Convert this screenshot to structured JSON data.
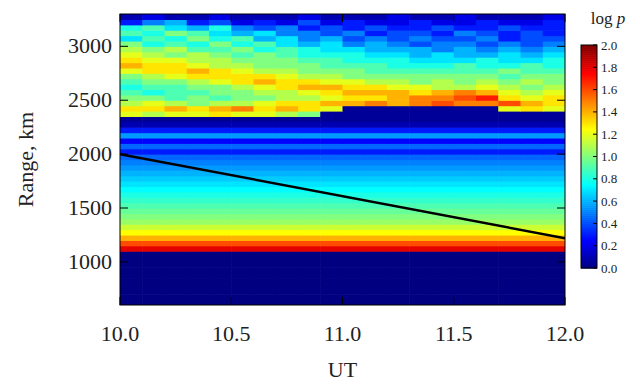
{
  "chart_data": {
    "type": "heatmap",
    "x_label": "UT",
    "y_label": "Range, km",
    "xlim": [
      10,
      12
    ],
    "ylim": [
      600,
      3300
    ],
    "xticks": [
      {
        "value": 10,
        "label": "10.0"
      },
      {
        "value": 10.5,
        "label": "10.5"
      },
      {
        "value": 11,
        "label": "11.0"
      },
      {
        "value": 11.5,
        "label": "11.5"
      },
      {
        "value": 12,
        "label": "12.0"
      }
    ],
    "yticks": [
      1000,
      1500,
      2000,
      2500,
      3000
    ],
    "x_edges": [
      10,
      10.1,
      10.2,
      10.3,
      10.4,
      10.5,
      10.6,
      10.7,
      10.8,
      10.9,
      11,
      11.1,
      11.2,
      11.3,
      11.4,
      11.5,
      11.6,
      11.7,
      11.8,
      11.9,
      12
    ],
    "y_edges": [
      600,
      650,
      700,
      750,
      800,
      850,
      900,
      950,
      1000,
      1050,
      1100,
      1150,
      1200,
      1250,
      1300,
      1350,
      1400,
      1450,
      1500,
      1550,
      1600,
      1650,
      1700,
      1750,
      1800,
      1850,
      1900,
      1950,
      2000,
      2050,
      2100,
      2150,
      2200,
      2250,
      2300,
      2350,
      2400,
      2450,
      2500,
      2550,
      2600,
      2650,
      2700,
      2750,
      2800,
      2850,
      2900,
      2950,
      3000,
      3050,
      3100,
      3150,
      3200,
      3250,
      3300
    ],
    "values": [
      [
        0,
        0,
        0,
        0,
        0,
        0,
        0,
        0,
        0,
        0,
        0,
        0,
        0,
        0,
        0,
        0,
        0,
        0,
        0,
        0
      ],
      [
        0,
        0,
        0,
        0,
        0,
        0,
        0,
        0,
        0,
        0,
        0,
        0,
        0,
        0,
        0,
        0,
        0,
        0,
        0,
        0
      ],
      [
        0,
        0,
        0,
        0,
        0,
        0,
        0,
        0,
        0,
        0,
        0,
        0,
        0,
        0,
        0,
        0,
        0,
        0,
        0,
        0
      ],
      [
        0,
        0,
        0,
        0,
        0,
        0,
        0,
        0,
        0,
        0,
        0,
        0,
        0,
        0,
        0,
        0,
        0,
        0,
        0,
        0
      ],
      [
        0,
        0,
        0,
        0,
        0,
        0,
        0,
        0,
        0,
        0,
        0,
        0,
        0,
        0,
        0,
        0,
        0,
        0,
        0,
        0
      ],
      [
        0,
        0,
        0,
        0,
        0,
        0,
        0,
        0,
        0,
        0,
        0,
        0,
        0,
        0,
        0,
        0,
        0,
        0,
        0,
        0
      ],
      [
        0,
        0,
        0,
        0,
        0,
        0,
        0,
        0,
        0,
        0,
        0,
        0,
        0,
        0,
        0,
        0,
        0,
        0,
        0,
        0
      ],
      [
        0,
        0,
        0,
        0,
        0,
        0,
        0,
        0,
        0,
        0,
        0,
        0,
        0,
        0,
        0,
        0,
        0,
        0,
        0,
        0
      ],
      [
        0,
        0,
        0,
        0,
        0,
        0,
        0,
        0,
        0,
        0,
        0,
        0,
        0,
        0,
        0,
        0,
        0,
        0,
        0,
        0
      ],
      [
        0,
        0,
        0,
        0,
        0,
        0,
        0,
        0,
        0,
        0,
        0,
        0,
        0,
        0,
        0,
        0,
        0,
        0,
        0,
        0
      ],
      [
        1.8,
        1.8,
        1.8,
        1.8,
        1.8,
        1.8,
        1.8,
        1.8,
        1.8,
        1.8,
        1.8,
        1.8,
        1.8,
        1.8,
        1.8,
        1.8,
        1.8,
        1.8,
        1.8,
        1.8
      ],
      [
        1.6,
        1.6,
        1.6,
        1.6,
        1.6,
        1.6,
        1.6,
        1.6,
        1.6,
        1.6,
        1.6,
        1.6,
        1.6,
        1.6,
        1.6,
        1.6,
        1.6,
        1.6,
        1.6,
        1.6
      ],
      [
        1.4,
        1.4,
        1.4,
        1.4,
        1.4,
        1.4,
        1.4,
        1.4,
        1.4,
        1.4,
        1.4,
        1.4,
        1.4,
        1.4,
        1.4,
        1.4,
        1.4,
        1.4,
        1.4,
        1.4
      ],
      [
        1.25,
        1.25,
        1.25,
        1.25,
        1.25,
        1.25,
        1.25,
        1.25,
        1.25,
        1.25,
        1.25,
        1.25,
        1.25,
        1.25,
        1.25,
        1.25,
        1.25,
        1.25,
        1.25,
        1.25
      ],
      [
        1.15,
        1.15,
        1.15,
        1.15,
        1.15,
        1.15,
        1.15,
        1.15,
        1.15,
        1.15,
        1.15,
        1.15,
        1.15,
        1.15,
        1.15,
        1.15,
        1.15,
        1.15,
        1.15,
        1.15
      ],
      [
        1.05,
        1.05,
        1.05,
        1.05,
        1.05,
        1.05,
        1.05,
        1.05,
        1.05,
        1.05,
        1.05,
        1.05,
        1.05,
        1.05,
        1.05,
        1.05,
        1.05,
        1.05,
        1.05,
        1.05
      ],
      [
        1,
        1,
        1,
        1,
        1,
        1,
        1,
        1,
        1,
        1,
        1,
        1,
        1,
        1,
        1,
        1,
        1,
        1,
        1,
        1
      ],
      [
        0.95,
        0.95,
        0.95,
        0.95,
        0.95,
        0.95,
        0.95,
        0.95,
        0.95,
        0.95,
        0.95,
        0.95,
        0.95,
        0.95,
        0.95,
        0.95,
        0.95,
        0.95,
        0.95,
        0.95
      ],
      [
        0.9,
        0.9,
        0.9,
        0.9,
        0.9,
        0.9,
        0.9,
        0.9,
        0.9,
        0.9,
        0.9,
        0.9,
        0.9,
        0.9,
        0.9,
        0.9,
        0.9,
        0.9,
        0.9,
        0.9
      ],
      [
        0.85,
        0.85,
        0.85,
        0.85,
        0.85,
        0.85,
        0.85,
        0.85,
        0.85,
        0.85,
        0.85,
        0.85,
        0.85,
        0.85,
        0.85,
        0.85,
        0.85,
        0.85,
        0.85,
        0.85
      ],
      [
        0.8,
        0.8,
        0.8,
        0.8,
        0.8,
        0.8,
        0.8,
        0.8,
        0.8,
        0.8,
        0.8,
        0.8,
        0.8,
        0.8,
        0.8,
        0.8,
        0.8,
        0.8,
        0.8,
        0.8
      ],
      [
        0.75,
        0.75,
        0.75,
        0.75,
        0.75,
        0.75,
        0.75,
        0.75,
        0.75,
        0.75,
        0.75,
        0.75,
        0.75,
        0.75,
        0.75,
        0.75,
        0.75,
        0.75,
        0.75,
        0.75
      ],
      [
        0.7,
        0.7,
        0.7,
        0.7,
        0.7,
        0.7,
        0.7,
        0.7,
        0.7,
        0.7,
        0.7,
        0.7,
        0.7,
        0.7,
        0.7,
        0.7,
        0.7,
        0.7,
        0.7,
        0.7
      ],
      [
        0.65,
        0.65,
        0.65,
        0.65,
        0.65,
        0.65,
        0.65,
        0.65,
        0.65,
        0.65,
        0.65,
        0.65,
        0.65,
        0.65,
        0.65,
        0.65,
        0.65,
        0.65,
        0.65,
        0.65
      ],
      [
        0.6,
        0.6,
        0.6,
        0.6,
        0.6,
        0.6,
        0.6,
        0.6,
        0.6,
        0.6,
        0.6,
        0.6,
        0.6,
        0.6,
        0.6,
        0.6,
        0.6,
        0.6,
        0.6,
        0.6
      ],
      [
        0.55,
        0.55,
        0.55,
        0.55,
        0.55,
        0.55,
        0.55,
        0.55,
        0.55,
        0.55,
        0.55,
        0.55,
        0.55,
        0.55,
        0.55,
        0.55,
        0.55,
        0.55,
        0.55,
        0.55
      ],
      [
        0.5,
        0.5,
        0.5,
        0.5,
        0.5,
        0.5,
        0.5,
        0.5,
        0.5,
        0.5,
        0.5,
        0.5,
        0.5,
        0.5,
        0.5,
        0.5,
        0.5,
        0.5,
        0.5,
        0.5
      ],
      [
        0.45,
        0.45,
        0.45,
        0.45,
        0.45,
        0.45,
        0.45,
        0.45,
        0.45,
        0.45,
        0.45,
        0.45,
        0.45,
        0.45,
        0.45,
        0.45,
        0.45,
        0.45,
        0.45,
        0.45
      ],
      [
        0.3,
        0.3,
        0.3,
        0.3,
        0.3,
        0.3,
        0.3,
        0.3,
        0.3,
        0.3,
        0.3,
        0.3,
        0.3,
        0.3,
        0.3,
        0.3,
        0.3,
        0.3,
        0.3,
        0.3
      ],
      [
        0.45,
        0.45,
        0.45,
        0.45,
        0.45,
        0.45,
        0.45,
        0.45,
        0.45,
        0.45,
        0.45,
        0.45,
        0.45,
        0.45,
        0.45,
        0.45,
        0.45,
        0.45,
        0.45,
        0.45
      ],
      [
        0.25,
        0.25,
        0.25,
        0.25,
        0.25,
        0.25,
        0.25,
        0.25,
        0.25,
        0.25,
        0.25,
        0.25,
        0.25,
        0.25,
        0.25,
        0.25,
        0.25,
        0.25,
        0.25,
        0.25
      ],
      [
        0.55,
        0.55,
        0.55,
        0.55,
        0.55,
        0.55,
        0.55,
        0.55,
        0.55,
        0.55,
        0.55,
        0.55,
        0.55,
        0.55,
        0.55,
        0.55,
        0.55,
        0.55,
        0.55,
        0.55
      ],
      [
        0.3,
        0.3,
        0.3,
        0.3,
        0.3,
        0.3,
        0.3,
        0.3,
        0.3,
        0.3,
        0.3,
        0.3,
        0.3,
        0.3,
        0.3,
        0.3,
        0.3,
        0.3,
        0.3,
        0.3
      ],
      [
        0.1,
        0.1,
        0.1,
        0.1,
        0.1,
        0.1,
        0.1,
        0.1,
        0.1,
        0.1,
        0.1,
        0.1,
        0.1,
        0.1,
        0.1,
        0.1,
        0.1,
        0.1,
        0.1,
        0.1
      ],
      [
        0.05,
        0.05,
        0.05,
        0.05,
        0.05,
        0.05,
        0.05,
        0.05,
        0.05,
        0.05,
        0.05,
        0.05,
        0.05,
        0.05,
        0.05,
        0.05,
        0.05,
        0.05,
        0.05,
        0.05
      ],
      [
        1.2,
        1.1,
        1.2,
        1.2,
        1.3,
        1.2,
        1.2,
        1.1,
        1,
        0.05,
        0.05,
        0.05,
        0.05,
        0.05,
        0.05,
        0.05,
        0.05,
        0.05,
        0.05,
        0.05
      ],
      [
        1.3,
        1.3,
        1.4,
        1.3,
        1.4,
        1.5,
        1.3,
        1.4,
        1.3,
        1.2,
        0.05,
        0.05,
        0.05,
        0.05,
        0.05,
        0.05,
        0.05,
        1.2,
        1.3,
        1.2
      ],
      [
        1.1,
        1.2,
        1.1,
        1,
        1.1,
        1.1,
        1.2,
        1.3,
        1.3,
        1.4,
        1.4,
        1.5,
        1.4,
        1.5,
        1.6,
        1.5,
        1.5,
        1.6,
        1.4,
        1.3
      ],
      [
        1,
        1,
        0.9,
        1,
        0.9,
        1,
        1,
        1.1,
        1.1,
        1.2,
        1.3,
        1.3,
        1.4,
        1.5,
        1.5,
        1.6,
        1.7,
        1.3,
        1.2,
        1.3
      ],
      [
        0.9,
        0.8,
        0.9,
        0.9,
        1,
        1,
        1.1,
        1.1,
        1.2,
        1.3,
        1.4,
        1.4,
        1.4,
        1.3,
        1.4,
        1.5,
        1.4,
        1.2,
        1.1,
        1.2
      ],
      [
        0.8,
        0.9,
        0.9,
        1,
        1,
        1.1,
        1.2,
        1.3,
        1.4,
        1.4,
        1.3,
        1.3,
        1.2,
        1.2,
        1.1,
        1.1,
        1.2,
        1.1,
        1,
        1.1
      ],
      [
        0.9,
        1,
        1,
        1.1,
        1.2,
        1.3,
        1.4,
        1.3,
        1.3,
        1.2,
        1.2,
        1.1,
        1.1,
        1,
        1.1,
        1,
        1.1,
        1,
        1.1,
        1
      ],
      [
        1,
        1.1,
        1.2,
        1.3,
        1.3,
        1.3,
        1.3,
        1.2,
        1.1,
        1.1,
        1,
        1,
        1,
        1,
        1,
        1,
        1,
        0.9,
        1,
        1
      ],
      [
        1.2,
        1.3,
        1.3,
        1.4,
        1.3,
        1.2,
        1.1,
        1.1,
        1,
        1,
        1,
        0.9,
        0.9,
        0.9,
        0.9,
        0.9,
        0.9,
        1,
        0.9,
        0.9
      ],
      [
        1.4,
        1.3,
        1.3,
        1.2,
        1.1,
        1.1,
        1,
        1,
        1,
        0.9,
        0.9,
        0.9,
        0.8,
        0.8,
        0.8,
        0.9,
        0.8,
        0.8,
        0.9,
        0.8
      ],
      [
        1.3,
        1.2,
        1.2,
        1.1,
        1.1,
        1,
        1,
        1,
        0.9,
        0.9,
        0.8,
        0.8,
        0.8,
        0.7,
        0.7,
        0.7,
        0.8,
        0.7,
        0.7,
        0.8
      ],
      [
        1.2,
        1.1,
        1,
        1.1,
        1,
        0.9,
        1,
        0.9,
        0.8,
        0.8,
        0.8,
        0.7,
        0.7,
        0.6,
        0.7,
        0.6,
        0.6,
        0.7,
        0.6,
        0.7
      ],
      [
        1.1,
        1,
        1.1,
        0.9,
        0.9,
        1,
        0.8,
        0.9,
        0.8,
        0.7,
        0.7,
        0.6,
        0.6,
        0.6,
        0.5,
        0.6,
        0.5,
        0.6,
        0.5,
        0.6
      ],
      [
        1,
        0.8,
        0.9,
        0.8,
        1,
        0.8,
        0.9,
        0.7,
        0.6,
        0.7,
        0.5,
        0.6,
        0.5,
        0.4,
        0.5,
        0.5,
        0.4,
        0.5,
        0.4,
        0.5
      ],
      [
        0.7,
        0.9,
        0.8,
        1,
        0.8,
        0.9,
        0.6,
        0.7,
        0.5,
        0.6,
        0.4,
        0.5,
        0.4,
        0.5,
        0.4,
        0.4,
        0.5,
        0.3,
        0.4,
        0.4
      ],
      [
        0.9,
        0.8,
        1,
        0.9,
        0.7,
        0.6,
        0.7,
        0.5,
        0.5,
        0.4,
        0.5,
        0.3,
        0.4,
        0.4,
        0.3,
        0.5,
        0.4,
        0.3,
        0.4,
        0.3
      ],
      [
        0.8,
        0.9,
        0.7,
        0.6,
        0.8,
        0.5,
        0.4,
        0.5,
        0.3,
        0.4,
        0.3,
        0.4,
        0.3,
        0.3,
        0.4,
        0.3,
        0.3,
        0.4,
        0.3,
        0.3
      ],
      [
        0.3,
        0.5,
        0.6,
        0.3,
        0.4,
        0.2,
        0.3,
        0.2,
        0.4,
        0.2,
        0.3,
        0.2,
        0.2,
        0.3,
        0.2,
        0.2,
        0.3,
        0.2,
        0.2,
        0.3
      ],
      [
        0.1,
        0.2,
        0.1,
        0.1,
        0.2,
        0.1,
        0.1,
        0.1,
        0.2,
        0.1,
        0.1,
        0.1,
        0.2,
        0.1,
        0.1,
        0.2,
        0.1,
        0.1,
        0.1,
        0.2
      ]
    ],
    "colorbar": {
      "label": "log p",
      "range": [
        0,
        2
      ],
      "ticks": [
        {
          "value": 0,
          "label": "0.0"
        },
        {
          "value": 0.2,
          "label": "0.2"
        },
        {
          "value": 0.4,
          "label": "0.4"
        },
        {
          "value": 0.6,
          "label": "0.6"
        },
        {
          "value": 0.8,
          "label": "0.8"
        },
        {
          "value": 1,
          "label": "1.0"
        },
        {
          "value": 1.2,
          "label": "1.2"
        },
        {
          "value": 1.4,
          "label": "1.4"
        },
        {
          "value": 1.6,
          "label": "1.6"
        },
        {
          "value": 1.8,
          "label": "1.8"
        },
        {
          "value": 2,
          "label": "2.0"
        }
      ]
    },
    "series": [
      {
        "type": "line",
        "color": "#000000",
        "x": [
          10,
          12
        ],
        "y": [
          2000,
          1220
        ]
      }
    ]
  }
}
